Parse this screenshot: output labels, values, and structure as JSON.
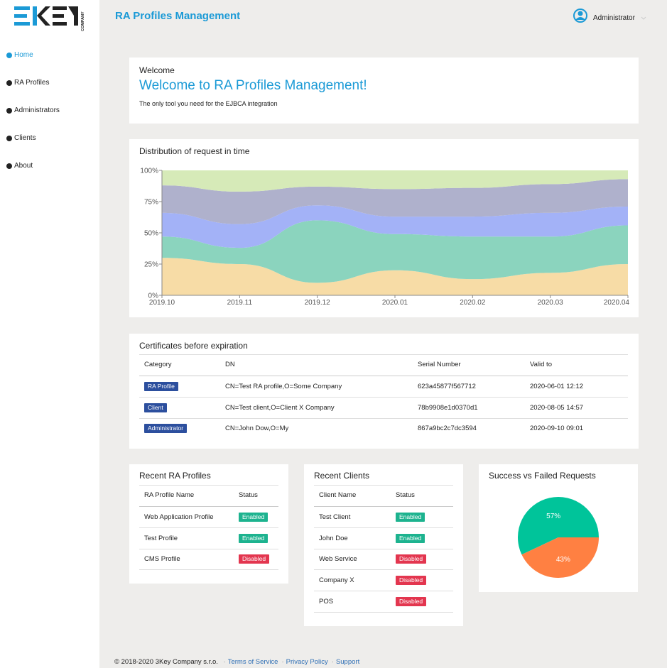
{
  "logo_caption": "COMPANY",
  "header": {
    "title": "RA Profiles Management",
    "user": "Administrator"
  },
  "nav": [
    "Home",
    "RA Profiles",
    "Administrators",
    "Clients",
    "About"
  ],
  "welcome": {
    "heading": "Welcome",
    "title": "Welcome to RA Profiles Management!",
    "text": "The only tool you need for the EJBCA integration"
  },
  "distribution": {
    "type": "stacked-area",
    "title": "Distribution of request in time",
    "categories": [
      "2019.10",
      "2019.11",
      "2019.12",
      "2020.01",
      "2020.02",
      "2020.03",
      "2020.04"
    ],
    "ylim": [
      0,
      100
    ],
    "yticks": [
      {
        "value": 0,
        "label": "0%"
      },
      {
        "value": 25,
        "label": "25%"
      },
      {
        "value": 50,
        "label": "50%"
      },
      {
        "value": 75,
        "label": "75%"
      },
      {
        "value": 100,
        "label": "100%"
      }
    ],
    "series": [
      {
        "color": "#f7dca6",
        "values": [
          30,
          25,
          10,
          20,
          13,
          18,
          25
        ]
      },
      {
        "color": "#8bd4be",
        "values": [
          17,
          13,
          50,
          29,
          34,
          29,
          31
        ]
      },
      {
        "color": "#a3b2f7",
        "values": [
          19,
          19,
          12,
          14,
          16,
          19,
          15
        ]
      },
      {
        "color": "#afb1cc",
        "values": [
          22,
          26,
          15,
          22,
          23,
          23,
          22
        ]
      },
      {
        "color": "#d6eab8",
        "values": [
          12,
          17,
          13,
          15,
          14,
          11,
          7
        ]
      }
    ]
  },
  "certificates": {
    "title": "Certificates before expiration",
    "badge_color": "#2c4f9e",
    "columns": [
      "Category",
      "DN",
      "Serial Number",
      "Valid to"
    ],
    "rows": [
      [
        "RA Profile",
        "CN=Test RA profile,O=Some Company",
        "623a45877f567712",
        "2020-06-01 12:12"
      ],
      [
        "Client",
        "CN=Test client,O=Client X Company",
        "78b9908e1d0370d1",
        "2020-08-05 14:57"
      ],
      [
        "Administrator",
        "CN=John Dow,O=My",
        "867a9bc2c7dc3594",
        "2020-09-10 09:01"
      ]
    ]
  },
  "status_colors": {
    "Enabled": "#1db38f",
    "Disabled": "#e3364f"
  },
  "recent_ra_profiles": {
    "title": "Recent RA Profiles",
    "columns": [
      "RA Profile Name",
      "Status"
    ],
    "rows": [
      [
        "Web Application Profile",
        "Enabled"
      ],
      [
        "Test Profile",
        "Enabled"
      ],
      [
        "CMS Profile",
        "Disabled"
      ]
    ]
  },
  "recent_clients": {
    "title": "Recent Clients",
    "columns": [
      "Client Name",
      "Status"
    ],
    "rows": [
      [
        "Test Client",
        "Enabled"
      ],
      [
        "John Doe",
        "Enabled"
      ],
      [
        "Web Service",
        "Disabled"
      ],
      [
        "Company X",
        "Disabled"
      ],
      [
        "POS",
        "Disabled"
      ]
    ]
  },
  "requests": {
    "type": "pie",
    "title": "Success vs Failed Requests",
    "values": [
      57,
      43
    ],
    "value_labels": [
      "57%",
      "43%"
    ],
    "colors": [
      "#00c49a",
      "#ff8042"
    ]
  },
  "footer": {
    "copyright": "© 2018-2020  3Key Company s.r.o.",
    "links": [
      "Terms of Service",
      "Privacy Policy",
      "Support"
    ]
  }
}
